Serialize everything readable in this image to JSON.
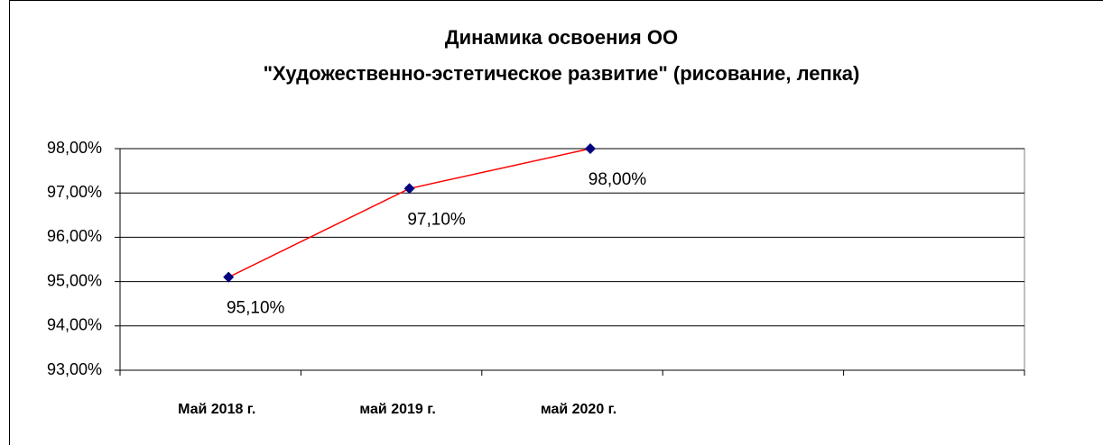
{
  "chart_data": {
    "type": "line",
    "title": [
      "Динамика освоения ОО",
      "\"Художественно-эстетическое развитие\" (рисование, лепка)"
    ],
    "categories": [
      "Май 2018  г.",
      "май  2019 г.",
      "май 2020 г.",
      null,
      null
    ],
    "series": [
      {
        "color": "#ff0000",
        "marker_color": "#000080",
        "values": [
          95.1,
          97.1,
          98.0,
          null,
          null
        ],
        "value_labels": [
          "95,10%",
          "97,10%",
          "98,00%",
          null,
          null
        ]
      }
    ],
    "ylim": [
      93,
      98
    ],
    "yticks": [
      {
        "value": 93,
        "label": "93,00%"
      },
      {
        "value": 94,
        "label": "94,00%"
      },
      {
        "value": 95,
        "label": "95,00%"
      },
      {
        "value": 96,
        "label": "96,00%"
      },
      {
        "value": 97,
        "label": "97,00%"
      },
      {
        "value": 98,
        "label": "98,00%"
      }
    ],
    "grid": true
  }
}
